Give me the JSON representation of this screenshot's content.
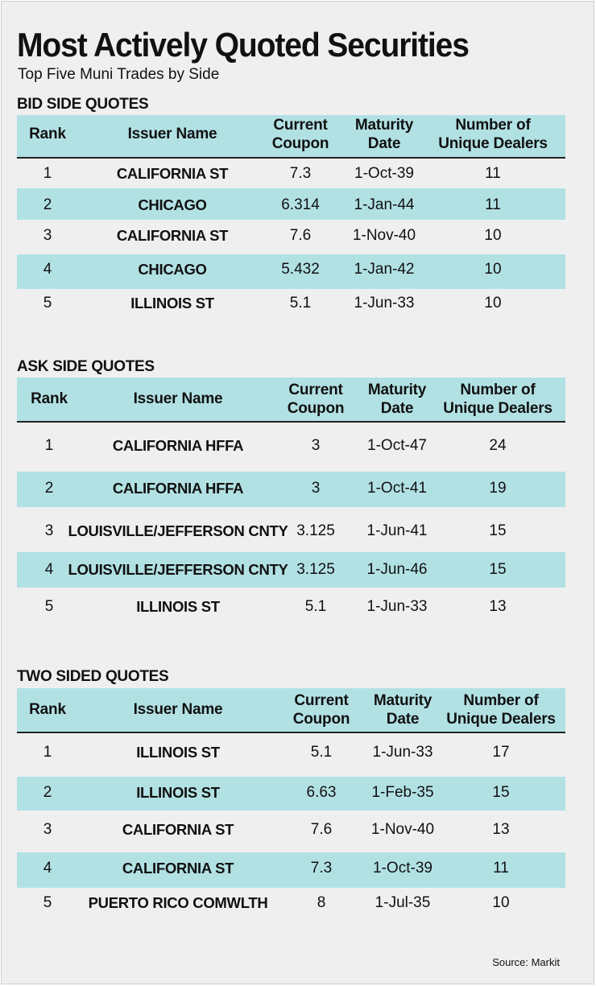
{
  "title": "Most Actively Quoted Securities",
  "subtitle": "Top Five Muni Trades by Side",
  "source": "Source: Markit",
  "colors": {
    "band": "#b2e1e4",
    "background": "#efeff0"
  },
  "headers": {
    "rank": "Rank",
    "issuer": "Issuer Name",
    "coupon_1": "Current",
    "coupon_2": "Coupon",
    "maturity_1": "Maturity",
    "maturity_2": "Date",
    "dealers_1": "Number of",
    "dealers_2": "Unique Dealers"
  },
  "chart_data": [
    {
      "type": "table",
      "title": "BID SIDE QUOTES",
      "columns": [
        "Rank",
        "Issuer Name",
        "Current Coupon",
        "Maturity Date",
        "Number of Unique Dealers"
      ],
      "rows": [
        [
          "1",
          "CALIFORNIA ST",
          "7.3",
          "1-Oct-39",
          "11"
        ],
        [
          "2",
          "CHICAGO",
          "6.314",
          "1-Jan-44",
          "11"
        ],
        [
          "3",
          "CALIFORNIA ST",
          "7.6",
          "1-Nov-40",
          "10"
        ],
        [
          "4",
          "CHICAGO",
          "5.432",
          "1-Jan-42",
          "10"
        ],
        [
          "5",
          "ILLINOIS ST",
          "5.1",
          "1-Jun-33",
          "10"
        ]
      ]
    },
    {
      "type": "table",
      "title": "ASK SIDE QUOTES",
      "columns": [
        "Rank",
        "Issuer Name",
        "Current Coupon",
        "Maturity Date",
        "Number of Unique Dealers"
      ],
      "rows": [
        [
          "1",
          "CALIFORNIA HFFA",
          "3",
          "1-Oct-47",
          "24"
        ],
        [
          "2",
          "CALIFORNIA HFFA",
          "3",
          "1-Oct-41",
          "19"
        ],
        [
          "3",
          "LOUISVILLE/JEFFERSON CNTY",
          "3.125",
          "1-Jun-41",
          "15"
        ],
        [
          "4",
          "LOUISVILLE/JEFFERSON CNTY",
          "3.125",
          "1-Jun-46",
          "15"
        ],
        [
          "5",
          "ILLINOIS ST",
          "5.1",
          "1-Jun-33",
          "13"
        ]
      ]
    },
    {
      "type": "table",
      "title": "TWO SIDED QUOTES",
      "columns": [
        "Rank",
        "Issuer Name",
        "Current Coupon",
        "Maturity Date",
        "Number of Unique Dealers"
      ],
      "rows": [
        [
          "1",
          "ILLINOIS ST",
          "5.1",
          "1-Jun-33",
          "17"
        ],
        [
          "2",
          "ILLINOIS ST",
          "6.63",
          "1-Feb-35",
          "15"
        ],
        [
          "3",
          "CALIFORNIA ST",
          "7.6",
          "1-Nov-40",
          "13"
        ],
        [
          "4",
          "CALIFORNIA ST",
          "7.3",
          "1-Oct-39",
          "11"
        ],
        [
          "5",
          "PUERTO RICO COMWLTH",
          "8",
          "1-Jul-35",
          "10"
        ]
      ]
    }
  ]
}
